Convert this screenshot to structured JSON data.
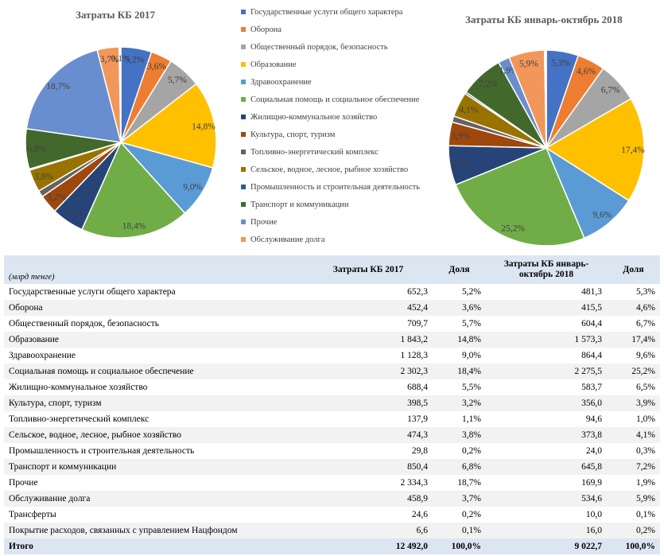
{
  "colors": [
    "#4472c4",
    "#ed7d31",
    "#a5a5a5",
    "#ffc000",
    "#5b9bd5",
    "#70ad47",
    "#264478",
    "#9e480e",
    "#636363",
    "#997300",
    "#255e91",
    "#43682b",
    "#698ed0",
    "#f1975a"
  ],
  "legend": [
    "Государственные услуги общего характера",
    "Оборона",
    "Общественный порядок, безопасность",
    "Образование",
    "Здравоохранение",
    "Социальная помощь и социальное обеспечение",
    "Жилищно-коммунальное хозяйство",
    "Культура, спорт, туризм",
    "Топливно-энергетический комплекс",
    "Сельское, водное, лесное, рыбное хозяйство",
    "Промышленность и строительная деятельность",
    "Транспорт и коммуникации",
    "Прочие",
    "Обслуживание долга"
  ],
  "chart_data": [
    {
      "type": "pie",
      "title": "Затраты КБ 2017",
      "categories": [
        "Государственные услуги общего характера",
        "Оборона",
        "Общественный порядок, безопасность",
        "Образование",
        "Здравоохранение",
        "Социальная помощь и социальное обеспечение",
        "Жилищно-коммунальное хозяйство",
        "Культура, спорт, туризм",
        "Топливно-энергетический комплекс",
        "Сельское, водное, лесное, рыбное хозяйство",
        "Промышленность и строительная деятельность",
        "Транспорт и коммуникации",
        "Прочие",
        "Обслуживание долга",
        "Трансферты",
        "Покрытие расходов, связанных с управлением Нацфондом"
      ],
      "values": [
        5.2,
        3.6,
        5.7,
        14.8,
        9.0,
        18.4,
        5.5,
        3.2,
        1.1,
        3.8,
        0.2,
        6.8,
        18.7,
        3.7,
        0.2,
        0.1
      ],
      "labels": [
        "5,2%",
        "3,6%",
        "5,7%",
        "14,8%",
        "9,0%",
        "18,4%",
        "5,5%",
        "3,2%",
        "",
        "3,8%",
        "",
        "6,8%",
        "18,7%",
        "3,7%",
        "",
        "0,1%"
      ]
    },
    {
      "type": "pie",
      "title": "Затраты КБ январь-октябрь 2018",
      "categories": [
        "Государственные услуги общего характера",
        "Оборона",
        "Общественный порядок, безопасность",
        "Образование",
        "Здравоохранение",
        "Социальная помощь и социальное обеспечение",
        "Жилищно-коммунальное хозяйство",
        "Культура, спорт, туризм",
        "Топливно-энергетический комплекс",
        "Сельское, водное, лесное, рыбное хозяйство",
        "Промышленность и строительная деятельность",
        "Транспорт и коммуникации",
        "Прочие",
        "Обслуживание долга",
        "Трансферты",
        "Покрытие расходов, связанных с управлением Нацфондом"
      ],
      "values": [
        5.3,
        4.6,
        6.7,
        17.4,
        9.6,
        25.2,
        6.5,
        3.9,
        1.0,
        4.1,
        0.3,
        7.2,
        1.9,
        5.9,
        0.1,
        0.2
      ],
      "labels": [
        "5,3%",
        "4,6%",
        "6,7%",
        "17,4%",
        "9,6%",
        "25,2%",
        "6,5%",
        "3,9%",
        "",
        "4,1%",
        "",
        "7,2%",
        "1,9%",
        "5,9%",
        "",
        ""
      ]
    }
  ],
  "table": {
    "headers": {
      "unit": "(млрд тенге)",
      "col1": "Затраты КБ 2017",
      "col2": "Доля",
      "col3_line1": "Затраты КБ январь-",
      "col3_line2": "октябрь 2018",
      "col4": "Доля"
    },
    "rows": [
      [
        "Государственные услуги общего характера",
        "652,3",
        "5,2%",
        "481,3",
        "5,3%"
      ],
      [
        "Оборона",
        "452,4",
        "3,6%",
        "415,5",
        "4,6%"
      ],
      [
        "Общественный порядок, безопасность",
        "709,7",
        "5,7%",
        "604,4",
        "6,7%"
      ],
      [
        "Образование",
        "1 843,2",
        "14,8%",
        "1 573,3",
        "17,4%"
      ],
      [
        "Здравоохранение",
        "1 128,3",
        "9,0%",
        "864,4",
        "9,6%"
      ],
      [
        "Социальная помощь и социальное обеспечение",
        "2 302,3",
        "18,4%",
        "2 275,5",
        "25,2%"
      ],
      [
        "Жилищно-коммунальное хозяйство",
        "688,4",
        "5,5%",
        "583,7",
        "6,5%"
      ],
      [
        "Культура, спорт, туризм",
        "398,5",
        "3,2%",
        "356,0",
        "3,9%"
      ],
      [
        "Топливно-энергетический комплекс",
        "137,9",
        "1,1%",
        "94,6",
        "1,0%"
      ],
      [
        "Сельское, водное, лесное, рыбное хозяйство",
        "474,3",
        "3,8%",
        "373,8",
        "4,1%"
      ],
      [
        "Промышленность и строительная деятельность",
        "29,8",
        "0,2%",
        "24,0",
        "0,3%"
      ],
      [
        "Транспорт и коммуникации",
        "850,4",
        "6,8%",
        "645,8",
        "7,2%"
      ],
      [
        "Прочие",
        "2 334,3",
        "18,7%",
        "169,9",
        "1,9%"
      ],
      [
        "Обслуживание долга",
        "458,9",
        "3,7%",
        "534,6",
        "5,9%"
      ],
      [
        "Трансферты",
        "24,6",
        "0,2%",
        "10,0",
        "0,1%"
      ],
      [
        "Покрытие расходов, связанных с управлением Нацфондом",
        "6,6",
        "0,1%",
        "16,0",
        "0,2%"
      ]
    ],
    "total": [
      "Итого",
      "12 492,0",
      "100,0%",
      "9 022,7",
      "100,0%"
    ]
  }
}
